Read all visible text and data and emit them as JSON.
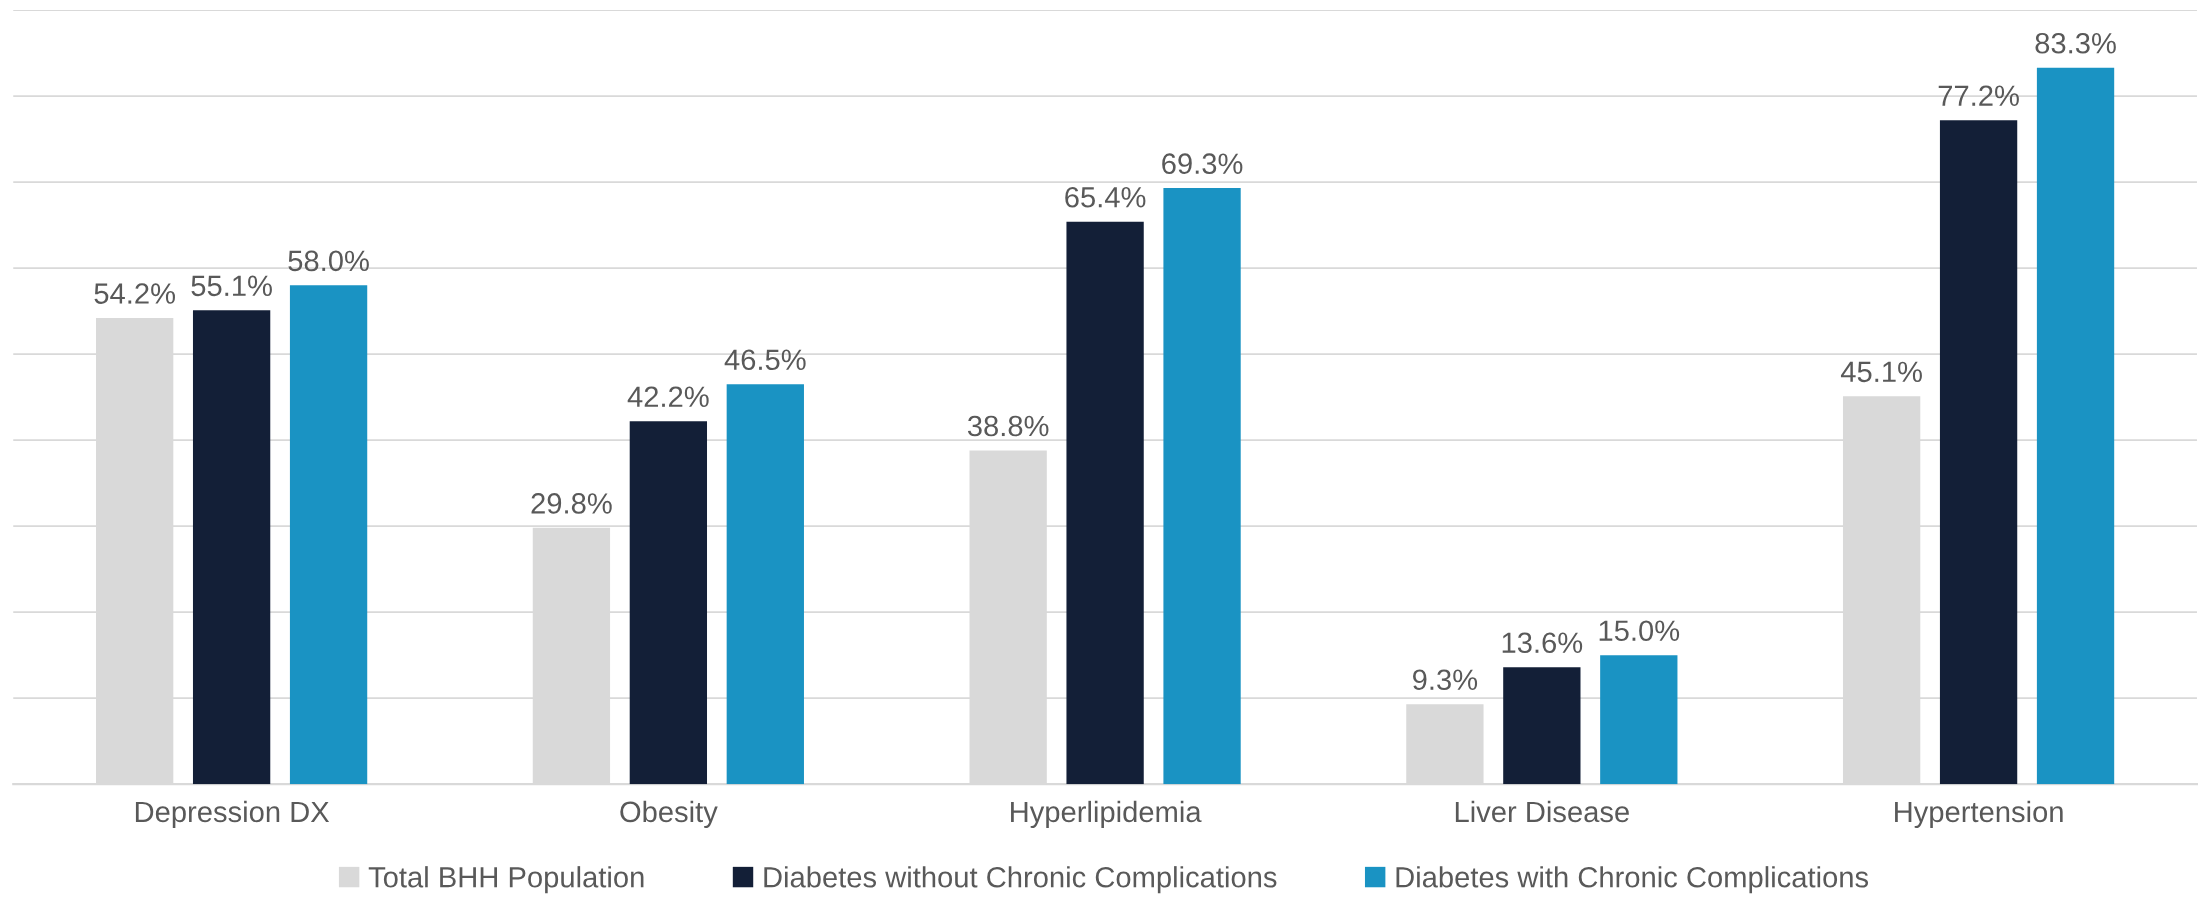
{
  "chart_data": {
    "type": "bar",
    "categories": [
      "Depression DX",
      "Obesity",
      "Hyperlipidemia",
      "Liver Disease",
      "Hypertension"
    ],
    "series": [
      {
        "name": "Total BHH Population",
        "color": "#d9d9d9",
        "values": [
          54.2,
          29.8,
          38.8,
          9.3,
          45.1
        ],
        "value_labels": [
          "54.2%",
          "29.8%",
          "38.8%",
          "9.3%",
          "45.1%"
        ]
      },
      {
        "name": "Diabetes without Chronic Complications",
        "color": "#131f37",
        "values": [
          55.1,
          42.2,
          65.4,
          13.6,
          77.2
        ],
        "value_labels": [
          "55.1%",
          "42.2%",
          "65.4%",
          "13.6%",
          "77.2%"
        ]
      },
      {
        "name": "Diabetes with Chronic Complications",
        "color": "#1a93c3",
        "values": [
          58.0,
          46.5,
          69.3,
          15.0,
          83.3
        ],
        "value_labels": [
          "58.0%",
          "46.5%",
          "69.3%",
          "15.0%",
          "83.3%"
        ]
      }
    ],
    "ylim": [
      0,
      90
    ],
    "yticks": [
      {
        "value": 0,
        "label": null
      },
      {
        "value": 10,
        "label": null
      },
      {
        "value": 20,
        "label": null
      },
      {
        "value": 30,
        "label": null
      },
      {
        "value": 40,
        "label": null
      },
      {
        "value": 50,
        "label": null
      },
      {
        "value": 60,
        "label": null
      },
      {
        "value": 70,
        "label": null
      },
      {
        "value": 80,
        "label": null
      },
      {
        "value": 90,
        "label": null
      }
    ],
    "tick_labels": "x",
    "grid": "y",
    "legend": "bottom"
  }
}
